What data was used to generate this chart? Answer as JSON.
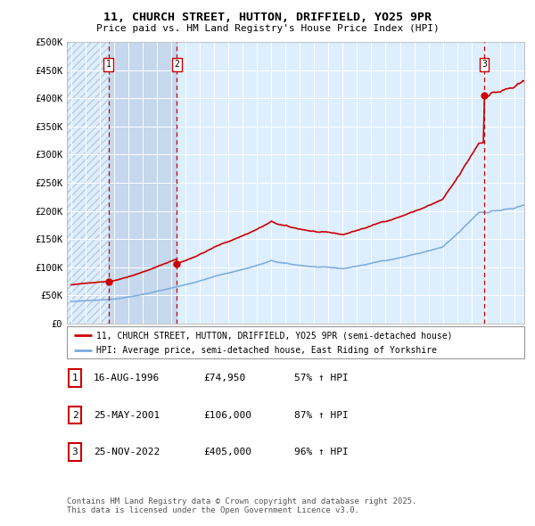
{
  "title1": "11, CHURCH STREET, HUTTON, DRIFFIELD, YO25 9PR",
  "title2": "Price paid vs. HM Land Registry's House Price Index (HPI)",
  "ylabel_ticks": [
    "£0",
    "£50K",
    "£100K",
    "£150K",
    "£200K",
    "£250K",
    "£300K",
    "£350K",
    "£400K",
    "£450K",
    "£500K"
  ],
  "ytick_vals": [
    0,
    50000,
    100000,
    150000,
    200000,
    250000,
    300000,
    350000,
    400000,
    450000,
    500000
  ],
  "xmin": 1993.7,
  "xmax": 2025.7,
  "ymin": 0,
  "ymax": 500000,
  "purchase_dates": [
    1996.622,
    2001.394,
    2022.899
  ],
  "purchase_prices": [
    74950,
    106000,
    405000
  ],
  "purchase_labels": [
    "1",
    "2",
    "3"
  ],
  "legend_line1": "11, CHURCH STREET, HUTTON, DRIFFIELD, YO25 9PR (semi-detached house)",
  "legend_line2": "HPI: Average price, semi-detached house, East Riding of Yorkshire",
  "table_rows": [
    [
      "1",
      "16-AUG-1996",
      "£74,950",
      "57% ↑ HPI"
    ],
    [
      "2",
      "25-MAY-2001",
      "£106,000",
      "87% ↑ HPI"
    ],
    [
      "3",
      "25-NOV-2022",
      "£405,000",
      "96% ↑ HPI"
    ]
  ],
  "footnote": "Contains HM Land Registry data © Crown copyright and database right 2025.\nThis data is licensed under the Open Government Licence v3.0.",
  "line_color_red": "#cc0000",
  "line_color_blue": "#7aaadd",
  "bg_color": "#ddeeff",
  "shaded_region_color": "#c5d8ee",
  "grid_color": "#ffffff",
  "dashed_line_color": "#cc0000",
  "hatch_color": "#bbccdd"
}
